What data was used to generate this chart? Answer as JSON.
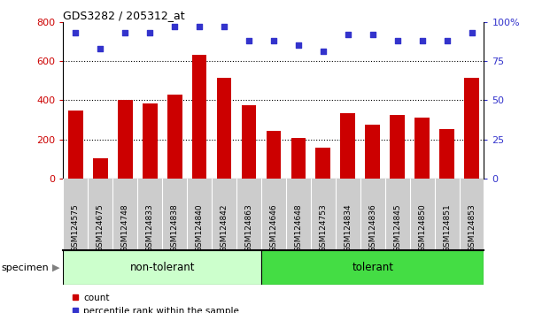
{
  "title": "GDS3282 / 205312_at",
  "categories": [
    "GSM124575",
    "GSM124675",
    "GSM124748",
    "GSM124833",
    "GSM124838",
    "GSM124840",
    "GSM124842",
    "GSM124863",
    "GSM124646",
    "GSM124648",
    "GSM124753",
    "GSM124834",
    "GSM124836",
    "GSM124845",
    "GSM124850",
    "GSM124851",
    "GSM124853"
  ],
  "bar_values": [
    345,
    105,
    400,
    385,
    430,
    630,
    515,
    375,
    245,
    205,
    155,
    335,
    275,
    325,
    310,
    250,
    515
  ],
  "percentile_values": [
    93,
    83,
    93,
    93,
    97,
    97,
    97,
    88,
    88,
    85,
    81,
    92,
    92,
    88,
    88,
    88,
    93
  ],
  "bar_color": "#cc0000",
  "dot_color": "#3333cc",
  "non_tolerant_count": 8,
  "tolerant_count": 9,
  "non_tolerant_label": "non-tolerant",
  "tolerant_label": "tolerant",
  "non_tolerant_bg": "#ccffcc",
  "tolerant_bg": "#44dd44",
  "specimen_label": "specimen",
  "legend_count_label": "count",
  "legend_pct_label": "percentile rank within the sample",
  "ylim_left": [
    0,
    800
  ],
  "ylim_right": [
    0,
    100
  ],
  "yticks_left": [
    0,
    200,
    400,
    600,
    800
  ],
  "yticks_right": [
    0,
    25,
    50,
    75,
    100
  ],
  "bg_color": "#ffffff",
  "tick_area_bg": "#cccccc",
  "grid_color": "#000000",
  "grid_levels": [
    200,
    400,
    600
  ]
}
